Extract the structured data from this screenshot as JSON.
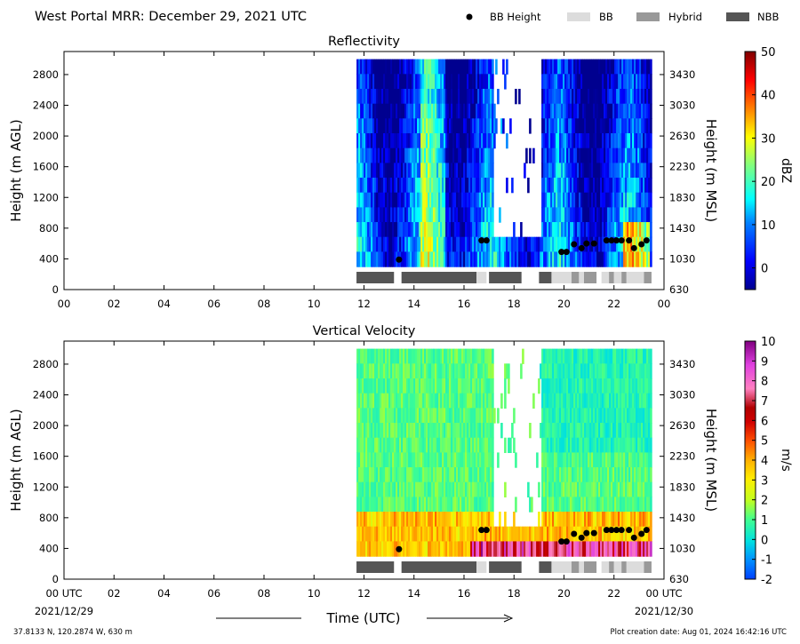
{
  "figure": {
    "title": "West Portal MRR:  December 29, 2021 UTC",
    "legend": {
      "bb_height": "BB Height",
      "bb": "BB",
      "hybrid": "Hybrid",
      "nbb": "NBB"
    },
    "xaxis": {
      "label": "Time (UTC)",
      "ticks": [
        "00",
        "02",
        "04",
        "06",
        "08",
        "10",
        "12",
        "14",
        "16",
        "18",
        "20",
        "22",
        "00"
      ],
      "bottom_ticks": [
        "00 UTC",
        "02",
        "04",
        "06",
        "08",
        "10",
        "12",
        "14",
        "16",
        "18",
        "20",
        "22",
        "00 UTC"
      ],
      "start_date": "2021/12/29",
      "end_date": "2021/12/30"
    },
    "footer": {
      "location": "37.8133 N, 120.2874 W, 630 m",
      "created": "Plot creation date: Aug 01, 2024 16:42:16 UTC"
    },
    "colors": {
      "bb": "#dcdcdc",
      "hybrid": "#999999",
      "nbb": "#555555",
      "point": "#000000"
    }
  },
  "chart_data": [
    {
      "type": "heatmap",
      "title": "Reflectivity",
      "xlabel": "",
      "ylabel": "Height (m AGL)",
      "ylabel_right": "Height (m MSL)",
      "xlim": [
        0,
        24
      ],
      "ylim": [
        0,
        3100
      ],
      "yticks": [
        "0",
        "400",
        "800",
        "1200",
        "1600",
        "2000",
        "2400",
        "2800"
      ],
      "yticks_right": [
        "630",
        "1030",
        "1430",
        "1830",
        "2230",
        "2630",
        "3030",
        "3430"
      ],
      "colorbar": {
        "label": "dBZ",
        "ticks": [
          "0",
          "10",
          "20",
          "30",
          "40",
          "50"
        ],
        "range": [
          -5,
          50
        ]
      },
      "data_extent_hours": [
        11.7,
        23.5
      ],
      "data_extent_height": [
        300,
        3000
      ],
      "bb_height_points": {
        "x": [
          13.4,
          16.7,
          16.9,
          19.9,
          20.1,
          20.4,
          20.7,
          20.9,
          21.2,
          21.7,
          21.9,
          22.1,
          22.3,
          22.6,
          22.8,
          23.1,
          23.3
        ],
        "y": [
          390,
          640,
          640,
          490,
          490,
          590,
          540,
          600,
          600,
          640,
          640,
          640,
          640,
          640,
          540,
          590,
          640
        ]
      },
      "bb_type_bar": [
        {
          "start": 11.7,
          "end": 13.2,
          "type": "NBB"
        },
        {
          "start": 13.5,
          "end": 16.5,
          "type": "NBB"
        },
        {
          "start": 16.5,
          "end": 16.9,
          "type": "BB"
        },
        {
          "start": 17.0,
          "end": 18.3,
          "type": "NBB"
        },
        {
          "start": 19.0,
          "end": 19.5,
          "type": "NBB"
        },
        {
          "start": 19.5,
          "end": 20.3,
          "type": "BB"
        },
        {
          "start": 20.3,
          "end": 20.6,
          "type": "Hybrid"
        },
        {
          "start": 20.6,
          "end": 20.8,
          "type": "BB"
        },
        {
          "start": 20.8,
          "end": 21.3,
          "type": "Hybrid"
        },
        {
          "start": 21.5,
          "end": 21.8,
          "type": "BB"
        },
        {
          "start": 21.8,
          "end": 22.0,
          "type": "Hybrid"
        },
        {
          "start": 22.0,
          "end": 22.3,
          "type": "BB"
        },
        {
          "start": 22.3,
          "end": 22.5,
          "type": "Hybrid"
        },
        {
          "start": 22.5,
          "end": 23.2,
          "type": "BB"
        },
        {
          "start": 23.2,
          "end": 23.5,
          "type": "Hybrid"
        }
      ]
    },
    {
      "type": "heatmap",
      "title": "Vertical Velocity",
      "xlabel": "Time (UTC)",
      "ylabel": "Height (m AGL)",
      "ylabel_right": "Height (m MSL)",
      "xlim": [
        0,
        24
      ],
      "ylim": [
        0,
        3100
      ],
      "yticks": [
        "0",
        "400",
        "800",
        "1200",
        "1600",
        "2000",
        "2400",
        "2800"
      ],
      "yticks_right": [
        "630",
        "1030",
        "1430",
        "1830",
        "2230",
        "2630",
        "3030",
        "3430"
      ],
      "colorbar": {
        "label": "m/s",
        "ticks": [
          "-2",
          "-1",
          "0",
          "1",
          "2",
          "3",
          "4",
          "5",
          "6",
          "7",
          "8",
          "9",
          "10"
        ],
        "range": [
          -2,
          10
        ]
      },
      "data_extent_hours": [
        11.7,
        23.5
      ],
      "data_extent_height": [
        300,
        3000
      ],
      "bb_height_points": {
        "x": [
          13.4,
          16.7,
          16.9,
          19.9,
          20.1,
          20.4,
          20.7,
          20.9,
          21.2,
          21.7,
          21.9,
          22.1,
          22.3,
          22.6,
          22.8,
          23.1,
          23.3
        ],
        "y": [
          390,
          640,
          640,
          490,
          490,
          590,
          540,
          600,
          600,
          640,
          640,
          640,
          640,
          640,
          540,
          590,
          640
        ]
      },
      "bb_type_bar": [
        {
          "start": 11.7,
          "end": 13.2,
          "type": "NBB"
        },
        {
          "start": 13.5,
          "end": 16.5,
          "type": "NBB"
        },
        {
          "start": 16.5,
          "end": 16.9,
          "type": "BB"
        },
        {
          "start": 17.0,
          "end": 18.3,
          "type": "NBB"
        },
        {
          "start": 19.0,
          "end": 19.5,
          "type": "NBB"
        },
        {
          "start": 19.5,
          "end": 20.3,
          "type": "BB"
        },
        {
          "start": 20.3,
          "end": 20.6,
          "type": "Hybrid"
        },
        {
          "start": 20.6,
          "end": 20.8,
          "type": "BB"
        },
        {
          "start": 20.8,
          "end": 21.3,
          "type": "Hybrid"
        },
        {
          "start": 21.5,
          "end": 21.8,
          "type": "BB"
        },
        {
          "start": 21.8,
          "end": 22.0,
          "type": "Hybrid"
        },
        {
          "start": 22.0,
          "end": 22.3,
          "type": "BB"
        },
        {
          "start": 22.3,
          "end": 22.5,
          "type": "Hybrid"
        },
        {
          "start": 22.5,
          "end": 23.2,
          "type": "BB"
        },
        {
          "start": 23.2,
          "end": 23.5,
          "type": "Hybrid"
        }
      ]
    }
  ]
}
